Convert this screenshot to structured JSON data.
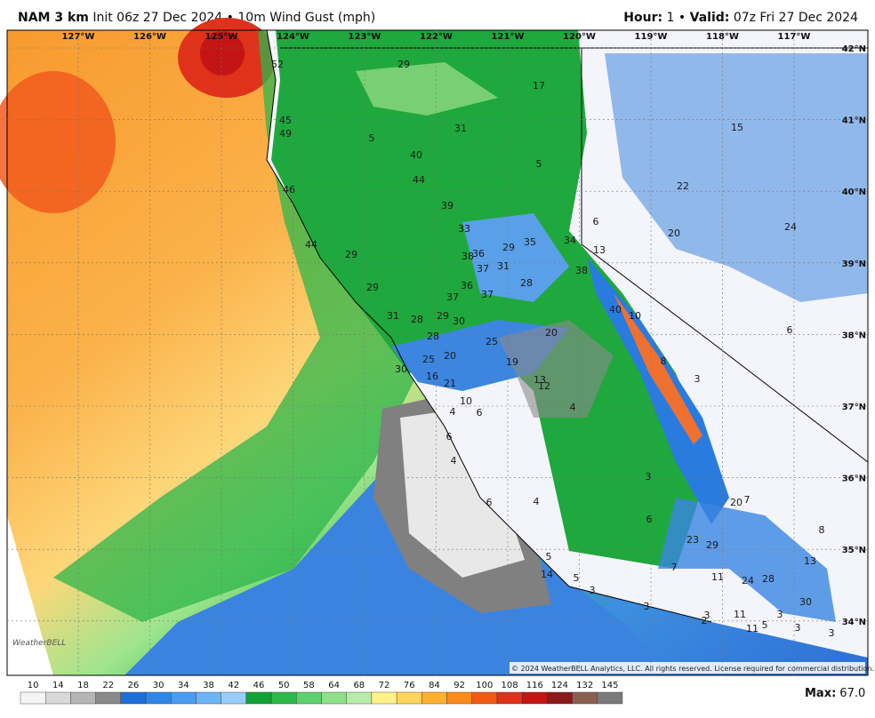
{
  "header": {
    "model": "NAM 3 km",
    "init": "Init 06z 27 Dec 2024",
    "sep1": "•",
    "field": "10m Wind Gust (mph)",
    "hour_label": "Hour:",
    "hour": "1",
    "sep2": "•",
    "valid_label": "Valid:",
    "valid": "07z Fri 27 Dec 2024"
  },
  "map": {
    "lon_labels": [
      "127°W",
      "126°W",
      "125°W",
      "124°W",
      "123°W",
      "122°W",
      "121°W",
      "120°W",
      "119°W",
      "118°W",
      "117°W"
    ],
    "lat_labels": [
      "42°N",
      "41°N",
      "40°N",
      "39°N",
      "38°N",
      "37°N",
      "36°N",
      "35°N",
      "34°N"
    ],
    "stations": [
      52,
      29,
      17,
      45,
      49,
      5,
      31,
      15,
      5,
      40,
      44,
      46,
      22,
      39,
      6,
      20,
      24,
      44,
      33,
      29,
      35,
      34,
      13,
      29,
      38,
      36,
      31,
      37,
      38,
      29,
      36,
      28,
      37,
      37,
      40,
      10,
      31,
      28,
      29,
      30,
      20,
      6,
      28,
      25,
      25,
      20,
      19,
      8,
      30,
      16,
      21,
      13,
      12,
      3,
      10,
      4,
      6,
      4,
      6,
      4,
      3,
      6,
      4,
      7,
      20,
      6,
      8,
      23,
      29,
      5,
      13,
      7,
      14,
      5,
      11,
      24,
      28,
      3,
      30,
      3,
      3,
      2,
      11,
      3,
      11,
      5,
      3,
      3
    ],
    "copyright": "© 2024 WeatherBELL Analytics, LLC. All rights reserved. License required for commercial distribution.",
    "logo": "WeatherBELL"
  },
  "colorbar": {
    "labels": [
      "10",
      "14",
      "18",
      "22",
      "26",
      "30",
      "34",
      "38",
      "42",
      "46",
      "50",
      "58",
      "64",
      "68",
      "72",
      "76",
      "84",
      "92",
      "100",
      "108",
      "116",
      "124",
      "132",
      "145"
    ]
  },
  "footer": {
    "max_label": "Max:",
    "max": "67.0"
  }
}
